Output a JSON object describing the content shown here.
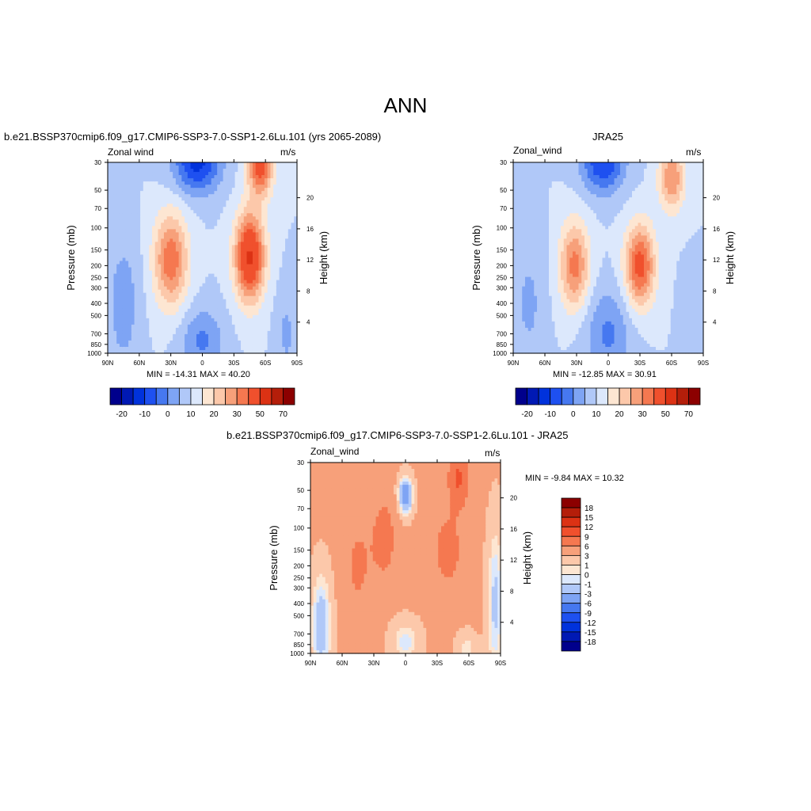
{
  "page_title": "ANN",
  "colors": {
    "wind": [
      "#00008c",
      "#0019b4",
      "#0032dc",
      "#1e50f0",
      "#4678f0",
      "#7ea4f4",
      "#b0c8f8",
      "#dce8fc",
      "#fde6d2",
      "#fcc8aa",
      "#f7a07a",
      "#f57850",
      "#f0502d",
      "#dc3214",
      "#b41e0a",
      "#8c0000"
    ],
    "diff": [
      "#00008c",
      "#0019b4",
      "#0032dc",
      "#1e50f0",
      "#4678f0",
      "#7ea4f4",
      "#b0c8f8",
      "#dce8fc",
      "#fde6d2",
      "#fcc8aa",
      "#f7a07a",
      "#f57850",
      "#f0502d",
      "#dc3214",
      "#b41e0a",
      "#8c0000"
    ]
  },
  "chart_data": [
    {
      "type": "heatmap",
      "title": "b.e21.BSSP370cmip6.f09_g17.CMIP6-SSP3-7.0-SSP1-2.6Lu.101 (yrs 2065-2089)",
      "left_title": "Zonal wind",
      "right_title": "m/s",
      "xlabel": "",
      "ylabel": "Pressure (mb)",
      "ylabel_right": "Height (km)",
      "x_ticks": [
        "90N",
        "60N",
        "30N",
        "0",
        "30S",
        "60S",
        "90S"
      ],
      "y_ticks": [
        "30",
        "50",
        "70",
        "100",
        "150",
        "200",
        "250",
        "300",
        "400",
        "500",
        "700",
        "850",
        "1000"
      ],
      "y_ticks_right": [
        "20",
        "16",
        "12",
        "8",
        "4"
      ],
      "stats": "MIN = -14.31  MAX =  40.20",
      "levels": [
        -25,
        -20,
        -15,
        -10,
        -5,
        0,
        5,
        10,
        15,
        20,
        25,
        30,
        40,
        50,
        60,
        70
      ],
      "colorbar_labels": [
        "-20",
        "-10",
        "0",
        "10",
        "20",
        "30",
        "50",
        "70"
      ],
      "jets": [
        {
          "lat": 30,
          "p": 180,
          "value": 28
        },
        {
          "lat": -45,
          "p": 180,
          "value": 38
        },
        {
          "lat": -55,
          "p": 30,
          "value": 40
        }
      ],
      "easterlies": [
        {
          "lat": 5,
          "p": 30,
          "value": -14
        },
        {
          "lat": 0,
          "p": 800,
          "value": -6
        }
      ]
    },
    {
      "type": "heatmap",
      "title": "JRA25",
      "left_title": "Zonal_wind",
      "right_title": "m/s",
      "xlabel": "",
      "ylabel": "Pressure (mb)",
      "ylabel_right": "Height (km)",
      "x_ticks": [
        "90N",
        "60N",
        "30N",
        "0",
        "30S",
        "60S",
        "90S"
      ],
      "y_ticks": [
        "30",
        "50",
        "70",
        "100",
        "150",
        "200",
        "250",
        "300",
        "400",
        "500",
        "700",
        "850",
        "1000"
      ],
      "y_ticks_right": [
        "20",
        "16",
        "12",
        "8",
        "4"
      ],
      "stats": "MIN = -12.85  MAX =  30.91",
      "levels": [
        -25,
        -20,
        -15,
        -10,
        -5,
        0,
        5,
        10,
        15,
        20,
        25,
        30,
        40,
        50,
        60,
        70
      ],
      "colorbar_labels": [
        "-20",
        "-10",
        "0",
        "10",
        "20",
        "30",
        "50",
        "70"
      ],
      "jets": [
        {
          "lat": 30,
          "p": 200,
          "value": 25
        },
        {
          "lat": -30,
          "p": 200,
          "value": 31
        },
        {
          "lat": -60,
          "p": 30,
          "value": 30
        }
      ],
      "easterlies": [
        {
          "lat": 5,
          "p": 30,
          "value": -13
        },
        {
          "lat": 0,
          "p": 800,
          "value": -6
        }
      ]
    },
    {
      "type": "heatmap",
      "title": "b.e21.BSSP370cmip6.f09_g17.CMIP6-SSP3-7.0-SSP1-2.6Lu.101 - JRA25",
      "left_title": "Zonal_wind",
      "right_title": "m/s",
      "xlabel": "",
      "ylabel": "Pressure (mb)",
      "ylabel_right": "Height (km)",
      "x_ticks": [
        "90N",
        "60N",
        "30N",
        "0",
        "30S",
        "60S",
        "90S"
      ],
      "y_ticks": [
        "30",
        "50",
        "70",
        "100",
        "150",
        "200",
        "250",
        "300",
        "400",
        "500",
        "700",
        "850",
        "1000"
      ],
      "y_ticks_right": [
        "20",
        "16",
        "12",
        "8",
        "4"
      ],
      "stats": "MIN =  -9.84  MAX =  10.32",
      "levels": [
        -18,
        -15,
        -12,
        -9,
        -6,
        -3,
        -1,
        0,
        1,
        3,
        6,
        9,
        12,
        15,
        18
      ],
      "colorbar_labels": [
        "18",
        "15",
        "12",
        "9",
        "6",
        "3",
        "1",
        "0",
        "-1",
        "-3",
        "-6",
        "-9",
        "-12",
        "-15",
        "-18"
      ]
    }
  ]
}
